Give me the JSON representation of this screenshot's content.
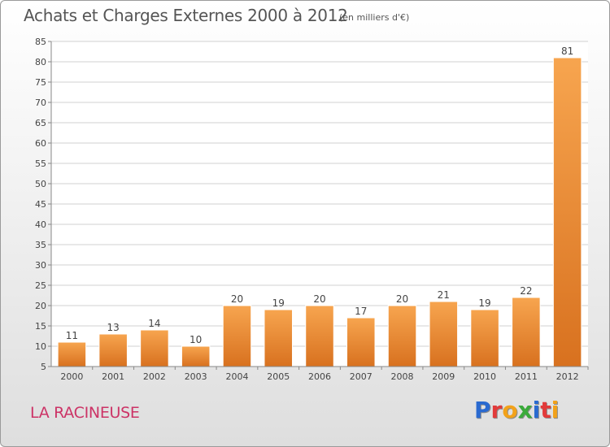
{
  "title": "Achats et Charges Externes 2000 à 2012",
  "subtitle": "(en milliers d'€)",
  "commune": "LA RACINEUSE",
  "logo": {
    "letters": [
      "P",
      "r",
      "o",
      "x",
      "i",
      "t",
      "i"
    ],
    "colors": [
      "#2a6ad0",
      "#e23a3a",
      "#f2a21a",
      "#3aaa3a",
      "#2a6ad0",
      "#e23a3a",
      "#f2a21a"
    ]
  },
  "colors": {
    "bar_top": "#f7a54f",
    "bar_bottom": "#d8711f",
    "grid": "#d0d0d0",
    "axis": "#888888"
  },
  "chart_data": {
    "type": "bar",
    "title": "Achats et Charges Externes 2000 à 2012",
    "subtitle": "(en milliers d'€)",
    "categories": [
      "2000",
      "2001",
      "2002",
      "2003",
      "2004",
      "2005",
      "2006",
      "2007",
      "2008",
      "2009",
      "2010",
      "2011",
      "2012"
    ],
    "values": [
      11,
      13,
      14,
      10,
      20,
      19,
      20,
      17,
      20,
      21,
      19,
      22,
      81
    ],
    "ylim": [
      5,
      85
    ],
    "yticks": [
      5,
      10,
      15,
      20,
      25,
      30,
      35,
      40,
      45,
      50,
      55,
      60,
      65,
      70,
      75,
      80,
      85
    ],
    "grid": true,
    "legend": "none"
  }
}
